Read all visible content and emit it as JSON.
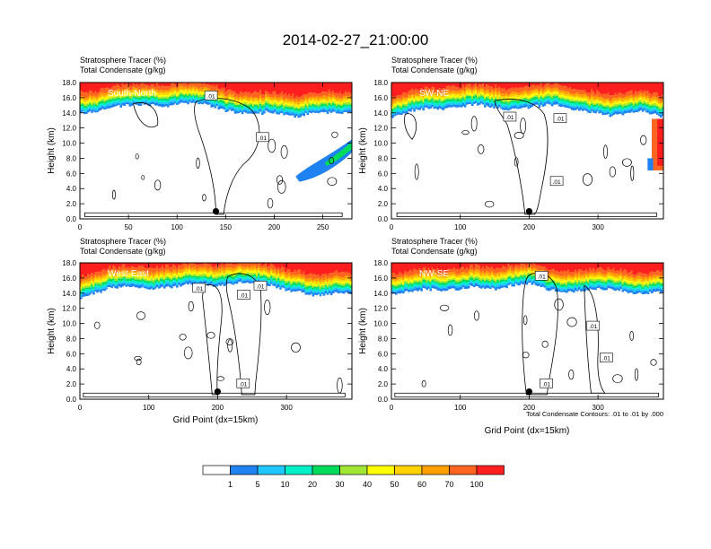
{
  "title": "2014-02-27_21:00:00",
  "colors": {
    "levels": [
      "#ffffff",
      "#1e82f0",
      "#1ec8ff",
      "#00f0c8",
      "#00dc5a",
      "#a0e632",
      "#ffff00",
      "#ffd200",
      "#ffa000",
      "#ff6420",
      "#ff1e1e"
    ],
    "contour": "#000000",
    "frame": "#000000"
  },
  "colorbar": {
    "labels": [
      "1",
      "5",
      "10",
      "20",
      "30",
      "40",
      "50",
      "60",
      "70",
      "100"
    ]
  },
  "footnote": "Total Condensate Contours: .01 to .01 by .000",
  "chart_data": [
    {
      "type": "heatmap",
      "panel_label": "South-North",
      "title_line1": "Stratosphere Tracer   (%)",
      "title_line2": "Total Condensate   (g/kg)",
      "ylabel": "Height (km)",
      "xlabel": "",
      "xlim": [
        0,
        280
      ],
      "ylim": [
        0,
        18
      ],
      "xticks": [
        "0",
        "50",
        "100",
        "150",
        "200",
        "250"
      ],
      "xtick_values": [
        0,
        50,
        100,
        150,
        200,
        250
      ],
      "yticks": [
        "0.0",
        "2.0",
        "4.0",
        "6.0",
        "8.0",
        "10.0",
        "12.0",
        "14.0",
        "16.0",
        "18.0"
      ],
      "tracer_base_km": [
        14.6,
        14.8,
        15.0,
        15.4,
        15.6,
        15.8,
        15.8,
        15.7,
        15.6,
        15.8,
        16.0,
        16.0,
        15.8,
        15.4,
        15.0,
        14.8,
        14.6,
        14.6,
        14.8,
        14.6,
        14.4,
        14.2,
        14.6,
        14.8,
        14.8,
        14.6,
        14.8
      ],
      "marker": {
        "x": 140,
        "y": 1.0
      },
      "contour_labels": [
        {
          "text": ".01",
          "x": 135,
          "y": 16.3
        },
        {
          "text": ".01",
          "x": 188,
          "y": 10.8
        }
      ]
    },
    {
      "type": "heatmap",
      "panel_label": "SW-NE",
      "title_line1": "Stratosphere Tracer   (%)",
      "title_line2": "Total Condensate   (g/kg)",
      "ylabel": "Height (km)",
      "xlabel": "",
      "xlim": [
        0,
        395
      ],
      "ylim": [
        0,
        18
      ],
      "xticks": [
        "0",
        "100",
        "200",
        "300"
      ],
      "xtick_values": [
        0,
        100,
        200,
        300
      ],
      "yticks": [
        "0.0",
        "2.0",
        "4.0",
        "6.0",
        "8.0",
        "10.0",
        "12.0",
        "14.0",
        "16.0",
        "18.0"
      ],
      "tracer_base_km": [
        14.2,
        14.6,
        15.0,
        15.2,
        15.4,
        15.2,
        15.4,
        15.6,
        15.8,
        15.6,
        15.4,
        15.0,
        15.2,
        15.4,
        15.6,
        15.8,
        15.6,
        15.4,
        15.0,
        14.8,
        14.6,
        14.4,
        14.6,
        14.8,
        15.0,
        14.6,
        14.2
      ],
      "marker": {
        "x": 200,
        "y": 1.0
      },
      "contour_labels": [
        {
          "text": ".01",
          "x": 172,
          "y": 13.5
        },
        {
          "text": ".01",
          "x": 245,
          "y": 13.3
        },
        {
          "text": ".01",
          "x": 240,
          "y": 5.0
        }
      ]
    },
    {
      "type": "heatmap",
      "panel_label": "West-East",
      "title_line1": "Stratosphere Tracer   (%)",
      "title_line2": "Total Condensate   (g/kg)",
      "ylabel": "Height (km)",
      "xlabel": "Grid Point (dx=15km)",
      "xlim": [
        0,
        395
      ],
      "ylim": [
        0,
        18
      ],
      "xticks": [
        "0",
        "100",
        "200",
        "300"
      ],
      "xtick_values": [
        0,
        100,
        200,
        300
      ],
      "yticks": [
        "0.0",
        "2.0",
        "4.0",
        "6.0",
        "8.0",
        "10.0",
        "12.0",
        "14.0",
        "16.0",
        "18.0"
      ],
      "tracer_base_km": [
        14.0,
        14.6,
        15.0,
        15.4,
        15.6,
        15.6,
        15.4,
        15.2,
        15.4,
        15.6,
        15.8,
        16.0,
        15.8,
        15.6,
        15.8,
        16.0,
        16.2,
        16.0,
        15.8,
        15.4,
        15.0,
        14.8,
        14.6,
        14.4,
        14.6,
        14.8,
        14.6
      ],
      "marker": {
        "x": 200,
        "y": 1.0
      },
      "contour_labels": [
        {
          "text": ".01",
          "x": 173,
          "y": 14.7
        },
        {
          "text": ".01",
          "x": 238,
          "y": 13.8
        },
        {
          "text": ".01",
          "x": 262,
          "y": 15.0
        },
        {
          "text": ".01",
          "x": 237,
          "y": 2.1
        }
      ]
    },
    {
      "type": "heatmap",
      "panel_label": "NW-SE",
      "title_line1": "Stratosphere Tracer   (%)",
      "title_line2": "Total Condensate   (g/kg)",
      "ylabel": "Height (km)",
      "xlabel": "Grid Point (dx=15km)",
      "xlim": [
        0,
        395
      ],
      "ylim": [
        0,
        18
      ],
      "xticks": [
        "0",
        "100",
        "200",
        "300"
      ],
      "xtick_values": [
        0,
        100,
        200,
        300
      ],
      "yticks": [
        "0.0",
        "2.0",
        "4.0",
        "6.0",
        "8.0",
        "10.0",
        "12.0",
        "14.0",
        "16.0",
        "18.0"
      ],
      "tracer_base_km": [
        14.6,
        14.8,
        15.0,
        15.2,
        15.2,
        15.0,
        15.2,
        15.4,
        15.6,
        15.4,
        15.2,
        15.6,
        15.8,
        16.0,
        15.6,
        15.2,
        15.0,
        14.8,
        15.0,
        15.2,
        15.4,
        15.2,
        15.0,
        14.8,
        14.6,
        14.8,
        15.0
      ],
      "marker": {
        "x": 200,
        "y": 1.0
      },
      "contour_labels": [
        {
          "text": ".01",
          "x": 218,
          "y": 16.3
        },
        {
          "text": ".01",
          "x": 293,
          "y": 9.7
        },
        {
          "text": ".01",
          "x": 312,
          "y": 5.5
        },
        {
          "text": ".01",
          "x": 225,
          "y": 2.1
        }
      ]
    }
  ]
}
